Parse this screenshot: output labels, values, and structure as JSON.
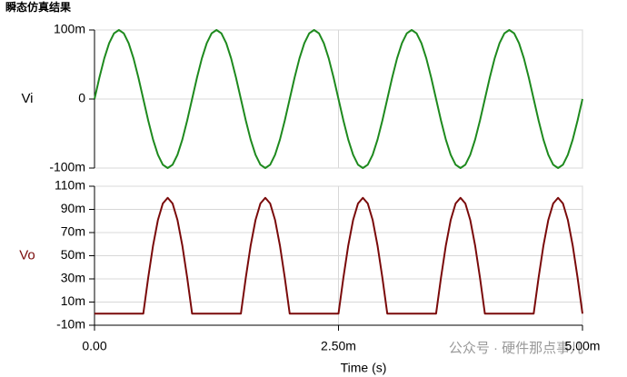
{
  "chart_data": {
    "type": "line",
    "title": "瞬态仿真结果",
    "xlabel": "Time (s)",
    "x": [
      0,
      5e-05,
      0.0001,
      0.00015,
      0.0002,
      0.00025,
      0.0003,
      0.00035,
      0.0004,
      0.00045,
      0.0005,
      0.00055,
      0.0006,
      0.00065,
      0.0007,
      0.00075,
      0.0008,
      0.00085,
      0.0009,
      0.00095,
      0.001,
      0.00105,
      0.0011,
      0.00115,
      0.0012,
      0.00125,
      0.0013,
      0.00135,
      0.0014,
      0.00145,
      0.0015,
      0.00155,
      0.0016,
      0.00165,
      0.0017,
      0.00175,
      0.0018,
      0.00185,
      0.0019,
      0.00195,
      0.002,
      0.00205,
      0.0021,
      0.00215,
      0.0022,
      0.00225,
      0.0023,
      0.00235,
      0.0024,
      0.00245,
      0.0025,
      0.00255,
      0.0026,
      0.00265,
      0.0027,
      0.00275,
      0.0028,
      0.00285,
      0.0029,
      0.00295,
      0.003,
      0.00305,
      0.0031,
      0.00315,
      0.0032,
      0.00325,
      0.0033,
      0.00335,
      0.0034,
      0.00345,
      0.0035,
      0.00355,
      0.0036,
      0.00365,
      0.0037,
      0.00375,
      0.0038,
      0.00385,
      0.0039,
      0.00395,
      0.004,
      0.00405,
      0.0041,
      0.00415,
      0.0042,
      0.00425,
      0.0043,
      0.00435,
      0.0044,
      0.00445,
      0.0045,
      0.00455,
      0.0046,
      0.00465,
      0.0047,
      0.00475,
      0.0048,
      0.00485,
      0.0049,
      0.00495,
      0.005
    ],
    "xlim": [
      0,
      0.005
    ],
    "xticks": [
      {
        "value": 0,
        "label": "0.00"
      },
      {
        "value": 0.0025,
        "label": "2.50m"
      },
      {
        "value": 0.005,
        "label": "5.00m"
      }
    ],
    "grid": true,
    "panels": [
      {
        "ylim": [
          -0.1,
          0.1
        ],
        "yticks": [
          {
            "value": 0.1,
            "label": "100m"
          },
          0,
          {
            "value": -0.1,
            "label": "-100m"
          }
        ],
        "series": [
          {
            "name": "Vi",
            "color": "#1e8a1e",
            "label_color": "#000000",
            "values": [
              0,
              0.0309,
              0.0588,
              0.0809,
              0.0951,
              0.1,
              0.0951,
              0.0809,
              0.0588,
              0.0309,
              0,
              -0.0309,
              -0.0588,
              -0.0809,
              -0.0951,
              -0.1,
              -0.0951,
              -0.0809,
              -0.0588,
              -0.0309,
              0,
              0.0309,
              0.0588,
              0.0809,
              0.0951,
              0.1,
              0.0951,
              0.0809,
              0.0588,
              0.0309,
              0,
              -0.0309,
              -0.0588,
              -0.0809,
              -0.0951,
              -0.1,
              -0.0951,
              -0.0809,
              -0.0588,
              -0.0309,
              0,
              0.0309,
              0.0588,
              0.0809,
              0.0951,
              0.1,
              0.0951,
              0.0809,
              0.0588,
              0.0309,
              0,
              -0.0309,
              -0.0588,
              -0.0809,
              -0.0951,
              -0.1,
              -0.0951,
              -0.0809,
              -0.0588,
              -0.0309,
              0,
              0.0309,
              0.0588,
              0.0809,
              0.0951,
              0.1,
              0.0951,
              0.0809,
              0.0588,
              0.0309,
              0,
              -0.0309,
              -0.0588,
              -0.0809,
              -0.0951,
              -0.1,
              -0.0951,
              -0.0809,
              -0.0588,
              -0.0309,
              0,
              0.0309,
              0.0588,
              0.0809,
              0.0951,
              0.1,
              0.0951,
              0.0809,
              0.0588,
              0.0309,
              0,
              -0.0309,
              -0.0588,
              -0.0809,
              -0.0951,
              -0.1,
              -0.0951,
              -0.0809,
              -0.0588,
              -0.0309,
              0
            ]
          }
        ]
      },
      {
        "ylim": [
          -0.01,
          0.11
        ],
        "yticks": [
          {
            "value": 0.11,
            "label": "110m"
          },
          {
            "value": 0.09,
            "label": "90m"
          },
          {
            "value": 0.07,
            "label": "70m"
          },
          {
            "value": 0.05,
            "label": "50m"
          },
          {
            "value": 0.03,
            "label": "30m"
          },
          {
            "value": 0.01,
            "label": "10m"
          },
          {
            "value": -0.01,
            "label": "-10m"
          }
        ],
        "series": [
          {
            "name": "Vo",
            "color": "#7a0a0a",
            "label_color": "#7a0a0a",
            "values": [
              0,
              0,
              0,
              0,
              0,
              0,
              0,
              0,
              0,
              0,
              0,
              0.0309,
              0.0588,
              0.0809,
              0.0951,
              0.1,
              0.0951,
              0.0809,
              0.0588,
              0.0309,
              0,
              0,
              0,
              0,
              0,
              0,
              0,
              0,
              0,
              0,
              0,
              0.0309,
              0.0588,
              0.0809,
              0.0951,
              0.1,
              0.0951,
              0.0809,
              0.0588,
              0.0309,
              0,
              0,
              0,
              0,
              0,
              0,
              0,
              0,
              0,
              0,
              0,
              0.0309,
              0.0588,
              0.0809,
              0.0951,
              0.1,
              0.0951,
              0.0809,
              0.0588,
              0.0309,
              0,
              0,
              0,
              0,
              0,
              0,
              0,
              0,
              0,
              0,
              0,
              0.0309,
              0.0588,
              0.0809,
              0.0951,
              0.1,
              0.0951,
              0.0809,
              0.0588,
              0.0309,
              0,
              0,
              0,
              0,
              0,
              0,
              0,
              0,
              0,
              0,
              0,
              0.0309,
              0.0588,
              0.0809,
              0.0951,
              0.1,
              0.0951,
              0.0809,
              0.0588,
              0.0309,
              0
            ]
          }
        ]
      }
    ]
  },
  "watermark": "公众号 · 硬件那点事儿"
}
